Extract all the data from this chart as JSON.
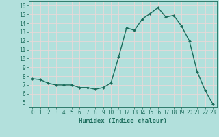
{
  "x": [
    0,
    1,
    2,
    3,
    4,
    5,
    6,
    7,
    8,
    9,
    10,
    11,
    12,
    13,
    14,
    15,
    16,
    17,
    18,
    19,
    20,
    21,
    22,
    23
  ],
  "y": [
    7.7,
    7.6,
    7.2,
    7.0,
    7.0,
    7.0,
    6.7,
    6.7,
    6.5,
    6.7,
    7.2,
    10.2,
    13.5,
    13.2,
    14.5,
    15.1,
    15.8,
    14.7,
    14.9,
    13.7,
    12.0,
    8.5,
    6.4,
    4.8
  ],
  "line_color": "#1a6b5a",
  "bg_color": "#b2e0dc",
  "grid_color": "#d0eeeb",
  "xlabel": "Humidex (Indice chaleur)",
  "xlim": [
    -0.5,
    23.5
  ],
  "ylim": [
    4.5,
    16.5
  ],
  "yticks": [
    5,
    6,
    7,
    8,
    9,
    10,
    11,
    12,
    13,
    14,
    15,
    16
  ],
  "xticks": [
    0,
    1,
    2,
    3,
    4,
    5,
    6,
    7,
    8,
    9,
    10,
    11,
    12,
    13,
    14,
    15,
    16,
    17,
    18,
    19,
    20,
    21,
    22,
    23
  ],
  "markersize": 2.0,
  "linewidth": 1.0,
  "tick_fontsize": 5.5,
  "label_fontsize": 6.5
}
